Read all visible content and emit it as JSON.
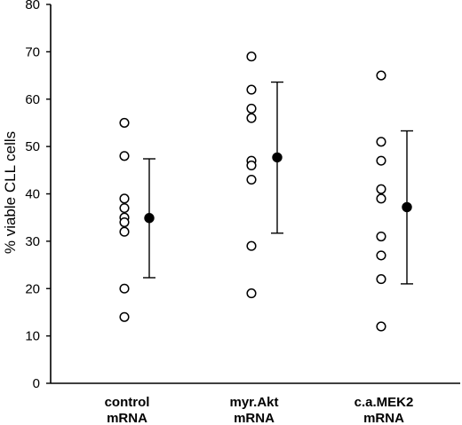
{
  "chart_data": {
    "type": "scatter",
    "ylabel": "% viable CLL cells",
    "ylim": [
      0,
      80
    ],
    "yticks": [
      0,
      10,
      20,
      30,
      40,
      50,
      60,
      70,
      80
    ],
    "grid": false,
    "categories": [
      {
        "line1": "control",
        "line2": "mRNA"
      },
      {
        "line1": "myr.Akt",
        "line2": "mRNA"
      },
      {
        "line1": "c.a.MEK2",
        "line2": "mRNA"
      }
    ],
    "individual_values": [
      [
        55,
        48,
        39,
        37,
        35,
        34,
        32,
        20,
        14
      ],
      [
        69,
        62,
        58,
        56,
        47,
        46,
        43,
        29,
        19
      ],
      [
        65,
        51,
        47,
        41,
        39,
        31,
        27,
        22,
        12
      ]
    ],
    "means": [
      34.9,
      47.7,
      37.2
    ],
    "error_low": [
      22.3,
      31.7,
      21.0
    ],
    "error_high": [
      47.4,
      63.6,
      53.3
    ]
  }
}
